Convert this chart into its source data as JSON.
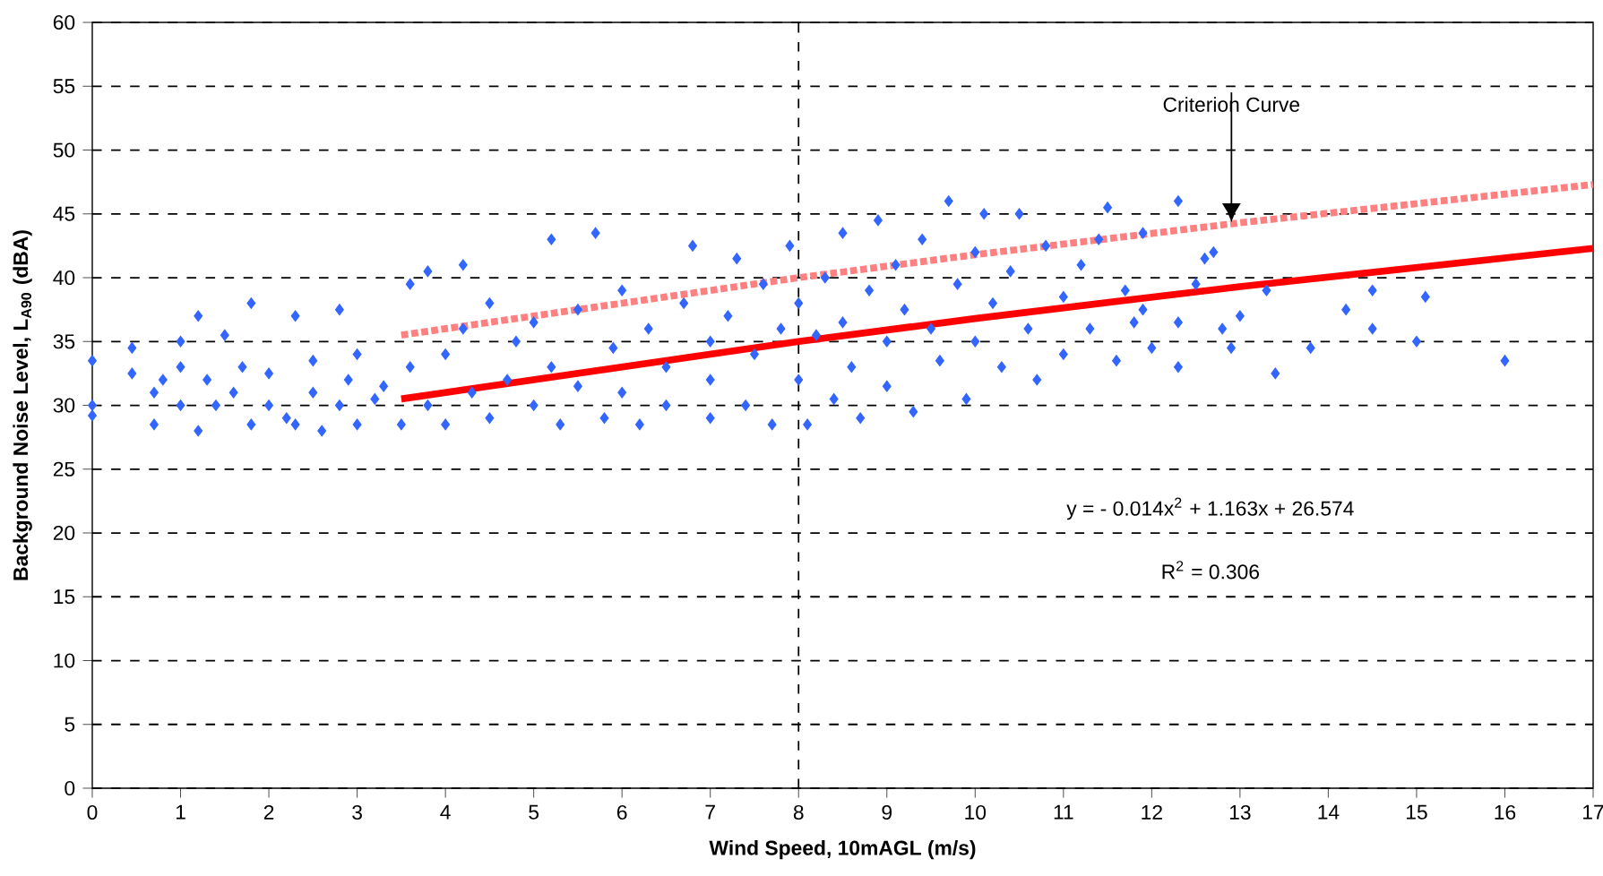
{
  "chart_data": {
    "type": "scatter",
    "xlabel": "Wind Speed, 10mAGL (m/s)",
    "ylabel": "Background Noise Level, L$_{A90}$ (dBA)",
    "xlim": [
      0,
      17
    ],
    "ylim": [
      0,
      60
    ],
    "xticks": [
      0,
      1,
      2,
      3,
      4,
      5,
      6,
      7,
      8,
      9,
      10,
      11,
      12,
      13,
      14,
      15,
      16,
      17
    ],
    "yticks": [
      0,
      5,
      10,
      15,
      20,
      25,
      30,
      35,
      40,
      45,
      50,
      55,
      60
    ],
    "grid": "y",
    "series": [
      {
        "color": "#3366ff",
        "marker": "diamond",
        "x": [
          0,
          0,
          0,
          0.45,
          0.45,
          0.7,
          0.7,
          0.8,
          1,
          1,
          1,
          1.2,
          1.2,
          1.3,
          1.4,
          1.5,
          1.6,
          1.7,
          1.8,
          1.8,
          2,
          2,
          2.2,
          2.3,
          2.3,
          2.5,
          2.5,
          2.6,
          2.8,
          2.8,
          2.9,
          3,
          3,
          3.2,
          3.3,
          3.5,
          3.6,
          3.6,
          3.8,
          3.8,
          4,
          4,
          4.2,
          4.2,
          4.3,
          4.5,
          4.5,
          4.7,
          4.8,
          5,
          5,
          5.2,
          5.2,
          5.3,
          5.5,
          5.5,
          5.7,
          5.8,
          5.9,
          6,
          6,
          6.2,
          6.3,
          6.5,
          6.5,
          6.7,
          6.8,
          7,
          7,
          7,
          7.2,
          7.3,
          7.4,
          7.5,
          7.6,
          7.7,
          7.8,
          7.9,
          8,
          8,
          8.1,
          8.2,
          8.3,
          8.4,
          8.5,
          8.5,
          8.6,
          8.7,
          8.8,
          8.9,
          9,
          9,
          9.1,
          9.2,
          9.3,
          9.4,
          9.5,
          9.6,
          9.7,
          9.8,
          9.9,
          10,
          10,
          10.1,
          10.2,
          10.3,
          10.4,
          10.5,
          10.6,
          10.7,
          10.8,
          11,
          11,
          11.2,
          11.3,
          11.4,
          11.5,
          11.6,
          11.7,
          11.8,
          11.9,
          12,
          12.3,
          12.3,
          12.3,
          12.5,
          12.7,
          12.8,
          12.9,
          13,
          13.3,
          13.4,
          13.8,
          14.2,
          14.5,
          14.5,
          15,
          15.1,
          16,
          12.6,
          11.9
        ],
        "values": [
          33.5,
          30,
          29.2,
          34.5,
          32.5,
          31,
          28.5,
          32,
          35,
          33,
          30,
          37,
          28,
          32,
          30,
          35.5,
          31,
          33,
          38,
          28.5,
          30,
          32.5,
          29,
          37,
          28.5,
          31,
          33.5,
          28,
          30,
          37.5,
          32,
          28.5,
          34,
          30.5,
          31.5,
          28.5,
          33,
          39.5,
          40.5,
          30,
          28.5,
          34,
          41,
          36,
          31,
          29,
          38,
          32,
          35,
          30,
          36.5,
          43,
          33,
          28.5,
          31.5,
          37.5,
          43.5,
          29,
          34.5,
          31,
          39,
          28.5,
          36,
          33,
          30,
          38,
          42.5,
          29,
          35,
          32,
          37,
          41.5,
          30,
          34,
          39.5,
          28.5,
          36,
          42.5,
          32,
          38,
          28.5,
          35.5,
          40,
          30.5,
          43.5,
          36.5,
          33,
          29,
          39,
          44.5,
          35,
          31.5,
          41,
          37.5,
          29.5,
          43,
          36,
          33.5,
          46,
          39.5,
          30.5,
          42,
          35,
          45,
          38,
          33,
          40.5,
          45,
          36,
          32,
          42.5,
          38.5,
          34,
          41,
          36,
          43,
          45.5,
          33.5,
          39,
          36.5,
          43.5,
          34.5,
          46,
          36.5,
          33,
          39.5,
          42,
          36,
          34.5,
          37,
          39,
          32.5,
          34.5,
          37.5,
          39,
          36,
          35,
          38.5,
          33.5,
          41.5,
          37.5
        ]
      },
      {
        "type": "line",
        "color": "#ff0000",
        "line_style": "solid",
        "x": [
          3.5,
          5,
          8,
          10,
          13,
          17
        ],
        "values": [
          30.5,
          32,
          35,
          36.8,
          39.3,
          42.3
        ]
      },
      {
        "type": "line",
        "color": "#ff8080",
        "line_style": "dotted",
        "x": [
          3.5,
          5,
          8,
          10,
          13,
          17
        ],
        "values": [
          35.5,
          37,
          40,
          41.8,
          44.3,
          47.3
        ]
      }
    ],
    "ref_lines": [
      {
        "axis": "x",
        "value": 8,
        "color": "#000000",
        "line_style": "dashed"
      }
    ],
    "annotations": [
      "Criterion Curve",
      "y = - 0.014x$^{2}$ + 1.163x + 26.574",
      "R$^{2}$ = 0.306"
    ]
  }
}
